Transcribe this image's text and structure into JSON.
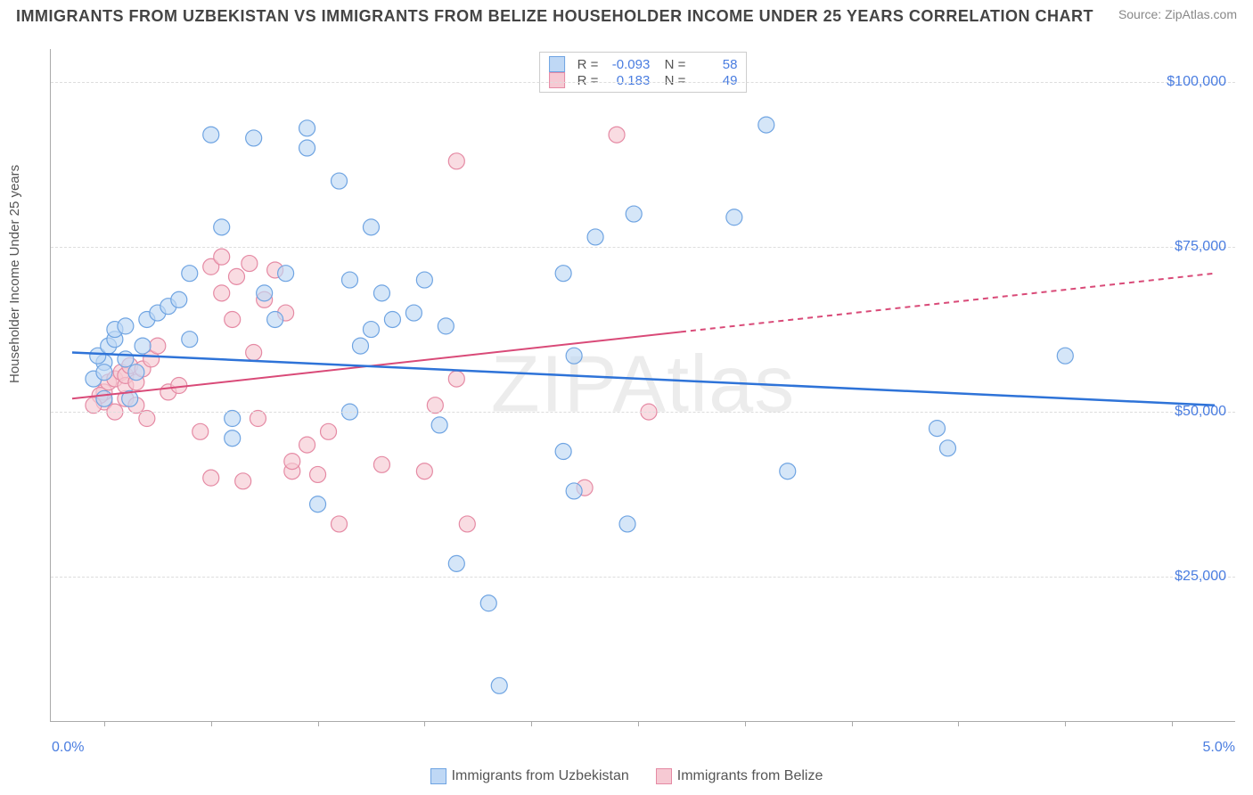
{
  "title": "IMMIGRANTS FROM UZBEKISTAN VS IMMIGRANTS FROM BELIZE HOUSEHOLDER INCOME UNDER 25 YEARS CORRELATION CHART",
  "source": "Source: ZipAtlas.com",
  "watermark": "ZIPAtlas",
  "ylabel": "Householder Income Under 25 years",
  "chart": {
    "type": "scatter",
    "xlim": [
      -0.25,
      5.3
    ],
    "ylim": [
      3000,
      105000
    ],
    "x_ticks": [
      0.0,
      0.5,
      1.0,
      1.5,
      2.0,
      2.5,
      3.0,
      3.5,
      4.0,
      4.5,
      5.0
    ],
    "x_label_min": "0.0%",
    "x_label_max": "5.0%",
    "y_gridlines": [
      25000,
      50000,
      75000,
      100000
    ],
    "y_tick_labels": [
      "$25,000",
      "$50,000",
      "$75,000",
      "$100,000"
    ],
    "grid_color": "#dddddd",
    "axis_color": "#aaaaaa",
    "tick_label_color": "#4a7de0",
    "background_color": "#ffffff"
  },
  "series": {
    "uzbekistan": {
      "label": "Immigrants from Uzbekistan",
      "fill": "#bfd8f5",
      "stroke": "#6fa4e2",
      "fill_opacity": 0.65,
      "marker_radius": 9,
      "trend": {
        "x1": -0.15,
        "y1": 59000,
        "x2": 5.2,
        "y2": 51000,
        "color": "#2e73d8",
        "width": 2.5,
        "dash_from_x": null
      },
      "R": "-0.093",
      "N": "58",
      "points": [
        [
          0.0,
          52000
        ],
        [
          0.0,
          57500
        ],
        [
          -0.05,
          55000
        ],
        [
          -0.03,
          58500
        ],
        [
          0.02,
          60000
        ],
        [
          0.0,
          56000
        ],
        [
          0.05,
          61000
        ],
        [
          0.05,
          62500
        ],
        [
          0.1,
          58000
        ],
        [
          0.1,
          63000
        ],
        [
          0.15,
          56000
        ],
        [
          0.2,
          64000
        ],
        [
          0.12,
          52000
        ],
        [
          0.18,
          60000
        ],
        [
          0.25,
          65000
        ],
        [
          0.3,
          66000
        ],
        [
          0.35,
          67000
        ],
        [
          0.4,
          71000
        ],
        [
          0.4,
          61000
        ],
        [
          0.5,
          92000
        ],
        [
          0.55,
          78000
        ],
        [
          0.6,
          46000
        ],
        [
          0.7,
          91500
        ],
        [
          0.75,
          68000
        ],
        [
          0.6,
          49000
        ],
        [
          0.8,
          64000
        ],
        [
          0.85,
          71000
        ],
        [
          0.95,
          93000
        ],
        [
          0.95,
          90000
        ],
        [
          1.0,
          36000
        ],
        [
          1.1,
          85000
        ],
        [
          1.15,
          70000
        ],
        [
          1.15,
          50000
        ],
        [
          1.2,
          60000
        ],
        [
          1.25,
          78000
        ],
        [
          1.25,
          62500
        ],
        [
          1.3,
          68000
        ],
        [
          1.35,
          64000
        ],
        [
          1.45,
          65000
        ],
        [
          1.5,
          70000
        ],
        [
          1.57,
          48000
        ],
        [
          1.6,
          63000
        ],
        [
          1.65,
          27000
        ],
        [
          1.8,
          21000
        ],
        [
          1.85,
          8500
        ],
        [
          2.15,
          44000
        ],
        [
          2.2,
          58500
        ],
        [
          2.15,
          71000
        ],
        [
          2.2,
          38000
        ],
        [
          2.3,
          76500
        ],
        [
          2.45,
          33000
        ],
        [
          2.48,
          80000
        ],
        [
          2.95,
          79500
        ],
        [
          3.1,
          93500
        ],
        [
          3.2,
          41000
        ],
        [
          3.9,
          47500
        ],
        [
          3.95,
          44500
        ],
        [
          4.5,
          58500
        ]
      ]
    },
    "belize": {
      "label": "Immigrants from Belize",
      "fill": "#f6c9d3",
      "stroke": "#e58aa4",
      "fill_opacity": 0.65,
      "marker_radius": 9,
      "trend": {
        "x1": -0.15,
        "y1": 52000,
        "x2": 5.2,
        "y2": 71000,
        "color": "#d94a78",
        "width": 2,
        "dash_from_x": 2.7
      },
      "R": "0.183",
      "N": "49",
      "points": [
        [
          0.0,
          51500
        ],
        [
          0.0,
          53000
        ],
        [
          0.02,
          54500
        ],
        [
          -0.02,
          52500
        ],
        [
          -0.05,
          51000
        ],
        [
          0.05,
          55000
        ],
        [
          0.05,
          50000
        ],
        [
          0.08,
          56000
        ],
        [
          0.1,
          52000
        ],
        [
          0.1,
          54000
        ],
        [
          0.1,
          55500
        ],
        [
          0.12,
          57000
        ],
        [
          0.15,
          54500
        ],
        [
          0.15,
          51000
        ],
        [
          0.18,
          56500
        ],
        [
          0.2,
          49000
        ],
        [
          0.22,
          58000
        ],
        [
          0.25,
          60000
        ],
        [
          0.3,
          53000
        ],
        [
          0.35,
          54000
        ],
        [
          0.45,
          47000
        ],
        [
          0.5,
          72000
        ],
        [
          0.5,
          40000
        ],
        [
          0.55,
          73500
        ],
        [
          0.55,
          68000
        ],
        [
          0.6,
          64000
        ],
        [
          0.62,
          70500
        ],
        [
          0.65,
          39500
        ],
        [
          0.68,
          72500
        ],
        [
          0.7,
          59000
        ],
        [
          0.72,
          49000
        ],
        [
          0.75,
          67000
        ],
        [
          0.8,
          71500
        ],
        [
          0.85,
          65000
        ],
        [
          0.88,
          41000
        ],
        [
          0.88,
          42500
        ],
        [
          0.95,
          45000
        ],
        [
          1.0,
          40500
        ],
        [
          1.05,
          47000
        ],
        [
          1.1,
          33000
        ],
        [
          1.3,
          42000
        ],
        [
          1.5,
          41000
        ],
        [
          1.55,
          51000
        ],
        [
          1.65,
          88000
        ],
        [
          1.65,
          55000
        ],
        [
          1.7,
          33000
        ],
        [
          2.25,
          38500
        ],
        [
          2.4,
          92000
        ],
        [
          2.55,
          50000
        ]
      ]
    }
  }
}
